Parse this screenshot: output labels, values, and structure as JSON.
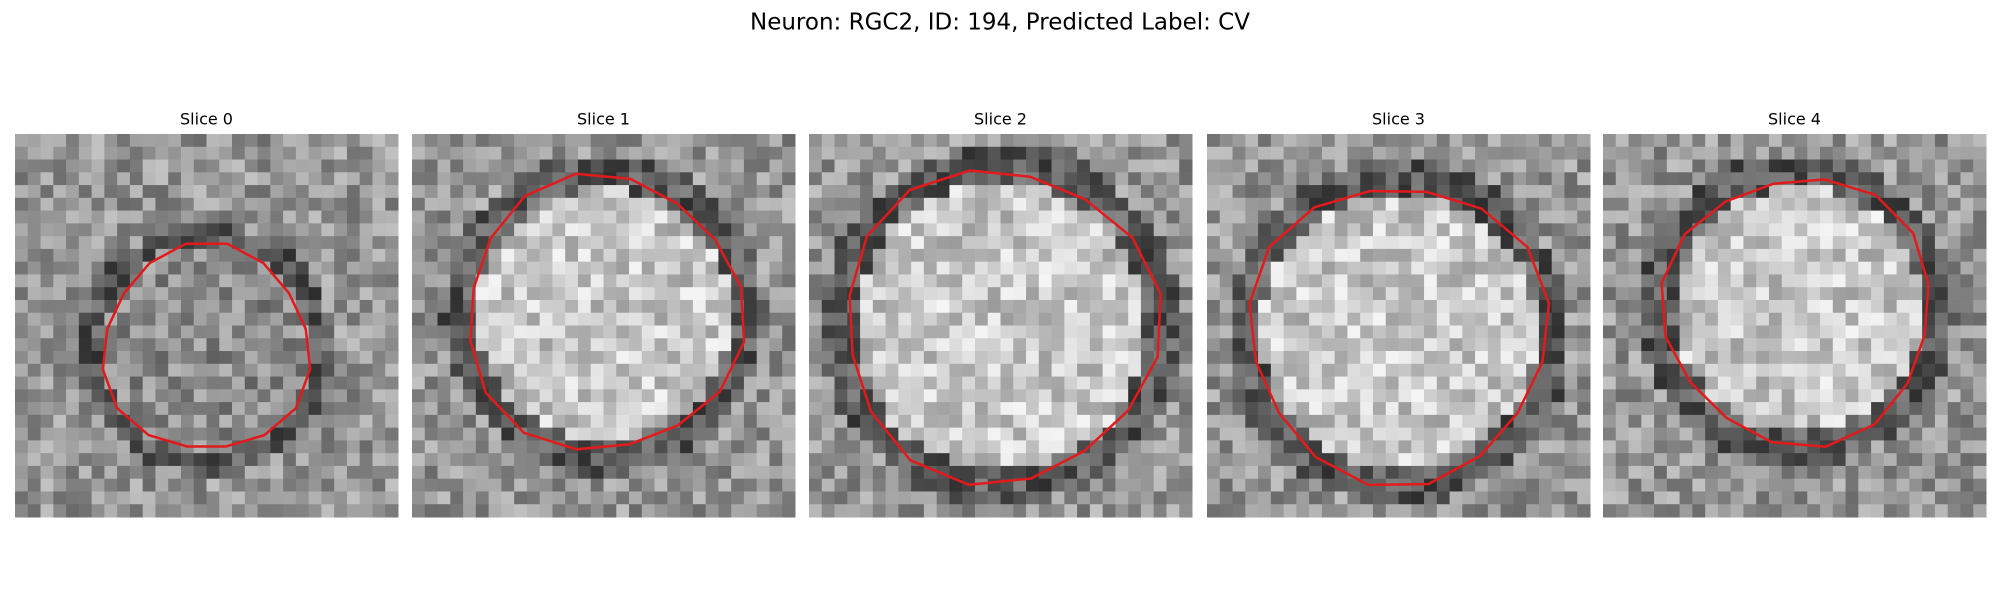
{
  "title": "Neuron: RGC2, ID: 194, Predicted Label: CV",
  "panels": [
    {
      "title": "Slice 0"
    },
    {
      "title": "Slice 1"
    },
    {
      "title": "Slice 2"
    },
    {
      "title": "Slice 3"
    },
    {
      "title": "Slice 4"
    }
  ]
}
